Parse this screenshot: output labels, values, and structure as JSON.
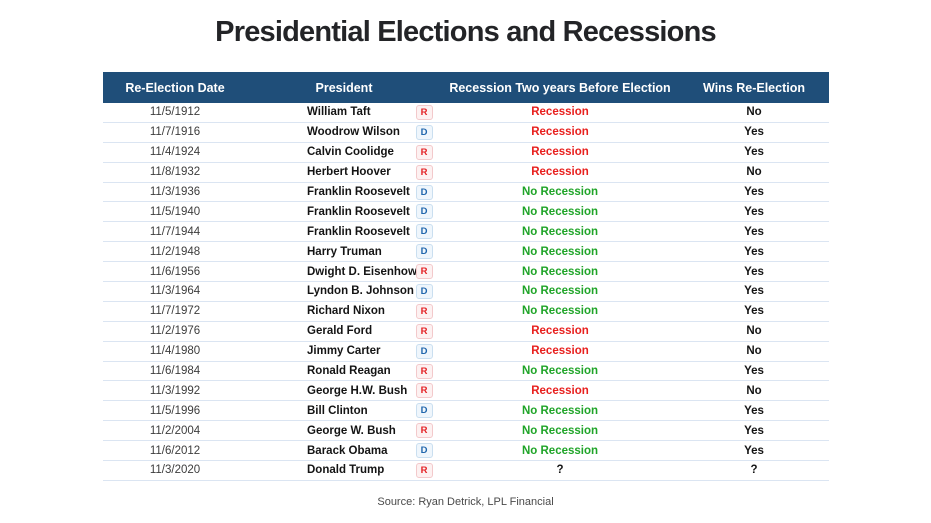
{
  "title": "Presidential Elections and Recessions",
  "source": "Source: Ryan Detrick, LPL Financial",
  "colors": {
    "header_bg": "#1F4E79",
    "header_text": "#FFFFFF",
    "recession_red": "#E8201E",
    "no_recession_green": "#1FA428",
    "republican_red": "#E32226",
    "democrat_blue": "#2166AC",
    "row_divider": "#DBE5F2"
  },
  "chart_data": {
    "type": "table",
    "title": "Presidential Elections and Recessions",
    "columns": [
      "Re-Election Date",
      "President",
      "Recession Two years Before Election",
      "Wins Re-Election"
    ],
    "rows": [
      {
        "date": "11/5/1912",
        "president": "William Taft",
        "party": "R",
        "recession_before": "Recession",
        "wins": "No"
      },
      {
        "date": "11/7/1916",
        "president": "Woodrow Wilson",
        "party": "D",
        "recession_before": "Recession",
        "wins": "Yes"
      },
      {
        "date": "11/4/1924",
        "president": "Calvin Coolidge",
        "party": "R",
        "recession_before": "Recession",
        "wins": "Yes"
      },
      {
        "date": "11/8/1932",
        "president": "Herbert Hoover",
        "party": "R",
        "recession_before": "Recession",
        "wins": "No"
      },
      {
        "date": "11/3/1936",
        "president": "Franklin Roosevelt",
        "party": "D",
        "recession_before": "No Recession",
        "wins": "Yes"
      },
      {
        "date": "11/5/1940",
        "president": "Franklin Roosevelt",
        "party": "D",
        "recession_before": "No Recession",
        "wins": "Yes"
      },
      {
        "date": "11/7/1944",
        "president": "Franklin Roosevelt",
        "party": "D",
        "recession_before": "No Recession",
        "wins": "Yes"
      },
      {
        "date": "11/2/1948",
        "president": "Harry Truman",
        "party": "D",
        "recession_before": "No Recession",
        "wins": "Yes"
      },
      {
        "date": "11/6/1956",
        "president": "Dwight D. Eisenhower",
        "party": "R",
        "recession_before": "No Recession",
        "wins": "Yes"
      },
      {
        "date": "11/3/1964",
        "president": "Lyndon B. Johnson",
        "party": "D",
        "recession_before": "No Recession",
        "wins": "Yes"
      },
      {
        "date": "11/7/1972",
        "president": "Richard Nixon",
        "party": "R",
        "recession_before": "No Recession",
        "wins": "Yes"
      },
      {
        "date": "11/2/1976",
        "president": "Gerald Ford",
        "party": "R",
        "recession_before": "Recession",
        "wins": "No"
      },
      {
        "date": "11/4/1980",
        "president": "Jimmy Carter",
        "party": "D",
        "recession_before": "Recession",
        "wins": "No"
      },
      {
        "date": "11/6/1984",
        "president": "Ronald Reagan",
        "party": "R",
        "recession_before": "No Recession",
        "wins": "Yes"
      },
      {
        "date": "11/3/1992",
        "president": "George H.W. Bush",
        "party": "R",
        "recession_before": "Recession",
        "wins": "No"
      },
      {
        "date": "11/5/1996",
        "president": "Bill Clinton",
        "party": "D",
        "recession_before": "No Recession",
        "wins": "Yes"
      },
      {
        "date": "11/2/2004",
        "president": "George W. Bush",
        "party": "R",
        "recession_before": "No Recession",
        "wins": "Yes"
      },
      {
        "date": "11/6/2012",
        "president": "Barack Obama",
        "party": "D",
        "recession_before": "No Recession",
        "wins": "Yes"
      },
      {
        "date": "11/3/2020",
        "president": "Donald Trump",
        "party": "R",
        "recession_before": "?",
        "wins": "?"
      }
    ]
  }
}
